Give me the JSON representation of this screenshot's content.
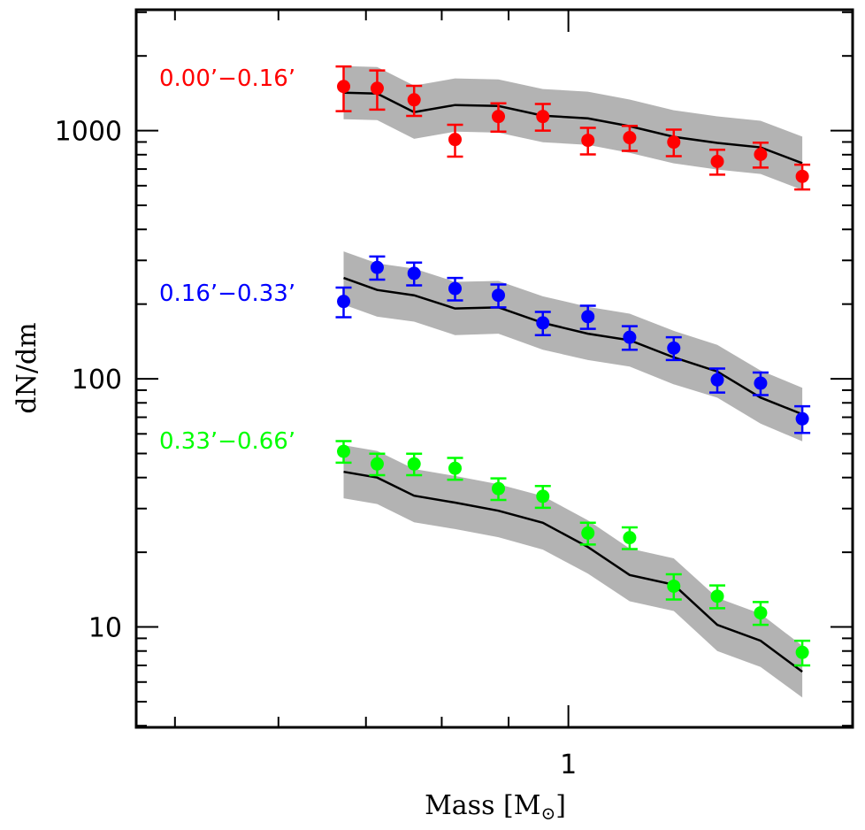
{
  "chart_data": {
    "type": "scatter",
    "xlabel": "Mass [M",
    "xlabel_sub": "⊙",
    "xlabel_close": "]",
    "ylabel": "dN/dm",
    "x_scale": "log",
    "y_scale": "log",
    "xlim": [
      0.467,
      1.65
    ],
    "ylim": [
      3.94,
      3070
    ],
    "x_ticks_major": [
      1
    ],
    "x_ticks_minor": [
      0.5,
      0.6,
      0.7,
      0.8,
      0.9
    ],
    "x_tick_labels": [
      "1"
    ],
    "y_ticks_major": [
      10,
      100,
      1000
    ],
    "y_tick_labels": [
      "10",
      "100",
      "1000"
    ],
    "grid": false,
    "band_color": "#b3b3b3",
    "line_color": "#000000",
    "x": [
      0.673,
      0.714,
      0.762,
      0.819,
      0.884,
      0.956,
      1.035,
      1.114,
      1.204,
      1.3,
      1.403,
      1.51
    ],
    "series": [
      {
        "name": "0.00’−0.16’",
        "color": "#ff0000",
        "values": [
          1506,
          1481,
          1331,
          921,
          1140,
          1140,
          914,
          937,
          899,
          751,
          802,
          654
        ],
        "errors": [
          308,
          266,
          185,
          135,
          149,
          140,
          112,
          108,
          110,
          86,
          92,
          75
        ],
        "model": [
          1422,
          1410,
          1187,
          1268,
          1257,
          1149,
          1121,
          1042,
          944,
          892,
          856,
          739
        ],
        "model_lower": [
          1111,
          1102,
          927,
          991,
          982,
          898,
          876,
          814,
          738,
          697,
          669,
          577
        ],
        "model_upper": [
          1820,
          1805,
          1519,
          1623,
          1609,
          1471,
          1435,
          1334,
          1208,
          1142,
          1096,
          946
        ]
      },
      {
        "name": "0.16’−0.33’",
        "color": "#0000ff",
        "values": [
          205,
          281,
          266,
          231,
          217,
          168,
          178,
          147,
          133,
          99,
          96,
          69
        ],
        "errors": [
          28,
          30,
          28,
          24,
          23,
          18,
          19,
          16,
          14,
          11,
          10,
          8.5
        ],
        "model": [
          255,
          228,
          217,
          192,
          194,
          168,
          152,
          143,
          122,
          107,
          84,
          72
        ],
        "model_lower": [
          199,
          178,
          170,
          150,
          152,
          131,
          119,
          112,
          95,
          84,
          66,
          56
        ],
        "model_upper": [
          326,
          292,
          278,
          246,
          248,
          215,
          195,
          183,
          156,
          137,
          108,
          92
        ]
      },
      {
        "name": "0.33’−0.66’",
        "color": "#00ff00",
        "values": [
          51,
          45.4,
          45.4,
          43.6,
          36.1,
          33.6,
          23.9,
          22.9,
          14.6,
          13.3,
          11.4,
          7.9
        ],
        "errors": [
          5.1,
          4.5,
          4.5,
          4.4,
          3.6,
          3.4,
          2.4,
          2.3,
          1.7,
          1.4,
          1.2,
          0.9
        ],
        "model": [
          42.2,
          40,
          33.8,
          31.7,
          29.4,
          26.3,
          21.0,
          16.2,
          14.8,
          10.2,
          8.8,
          6.6
        ],
        "model_lower": [
          33.0,
          31.3,
          26.4,
          24.8,
          23.0,
          20.5,
          16.4,
          12.7,
          11.6,
          8.0,
          6.9,
          5.2
        ],
        "model_upper": [
          54.0,
          51.2,
          43.3,
          40.6,
          37.6,
          33.7,
          26.9,
          20.7,
          18.9,
          13.1,
          11.3,
          8.4
        ]
      }
    ]
  }
}
